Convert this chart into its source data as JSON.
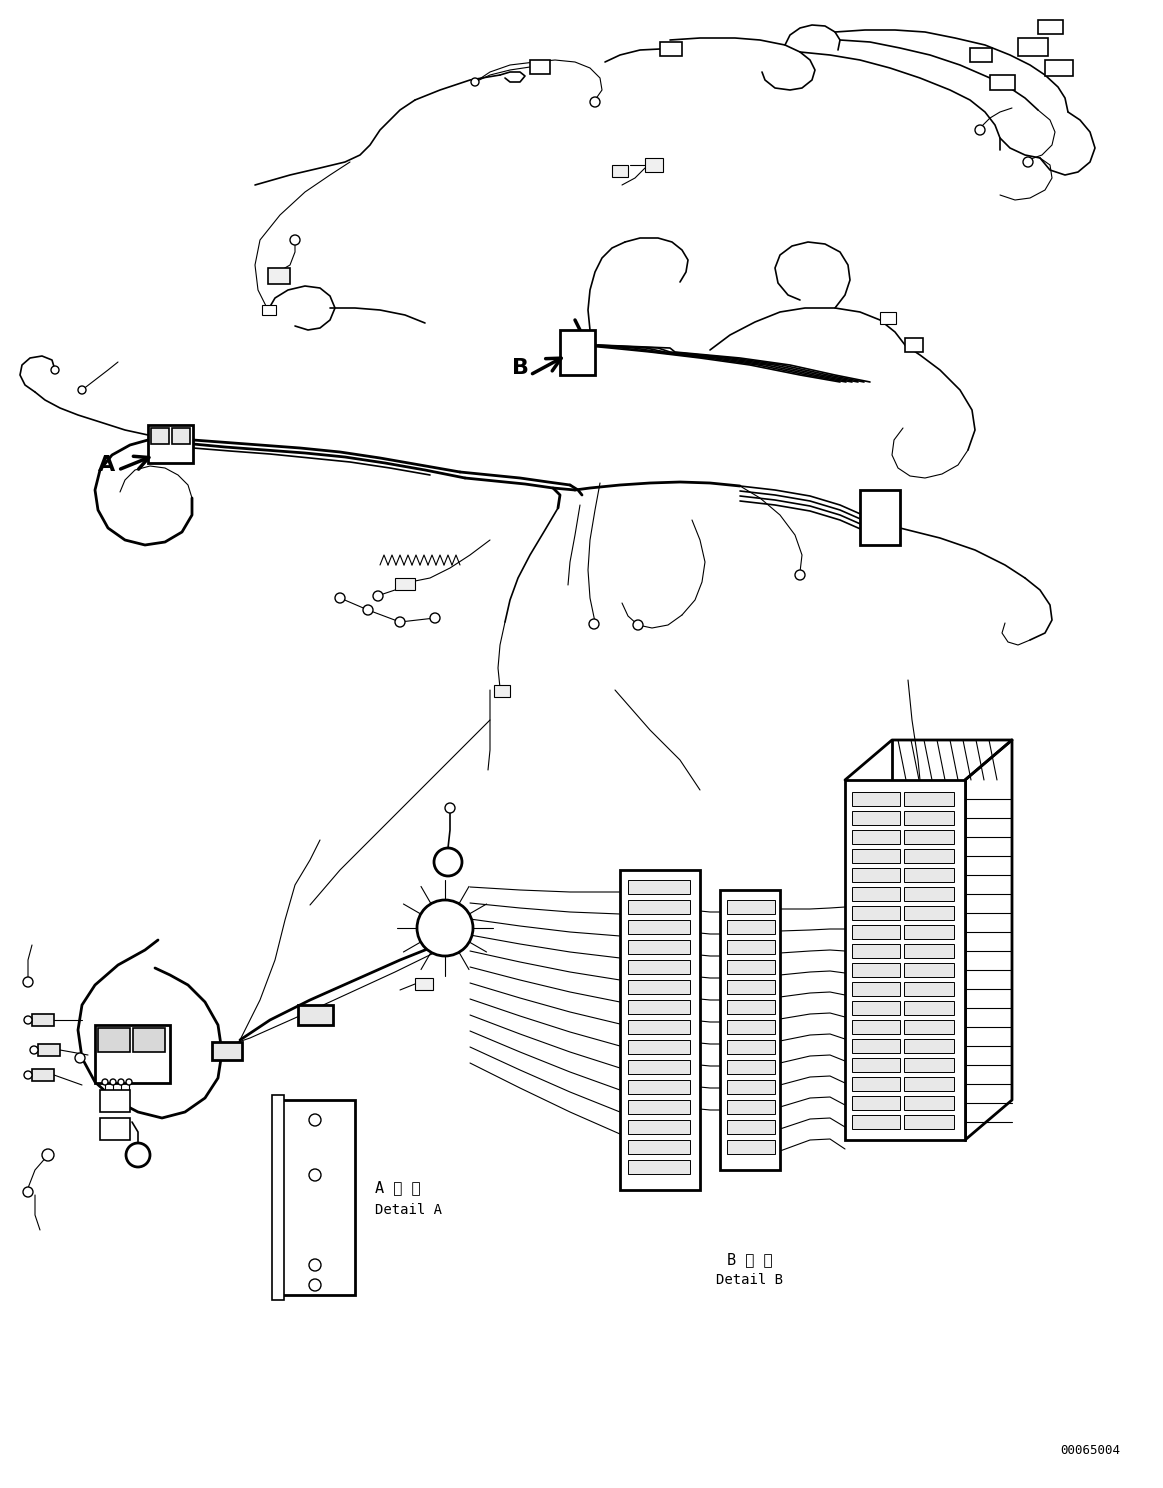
{
  "bg_color": "#ffffff",
  "line_color": "#000000",
  "fig_width": 11.63,
  "fig_height": 14.88,
  "text_detail_A_jp": "A 詳 細",
  "text_detail_A_en": "Detail A",
  "text_detail_B_jp": "B 詳 細",
  "text_detail_B_en": "Detail B",
  "part_number": "00065004",
  "label_A": "A",
  "label_B": "B"
}
